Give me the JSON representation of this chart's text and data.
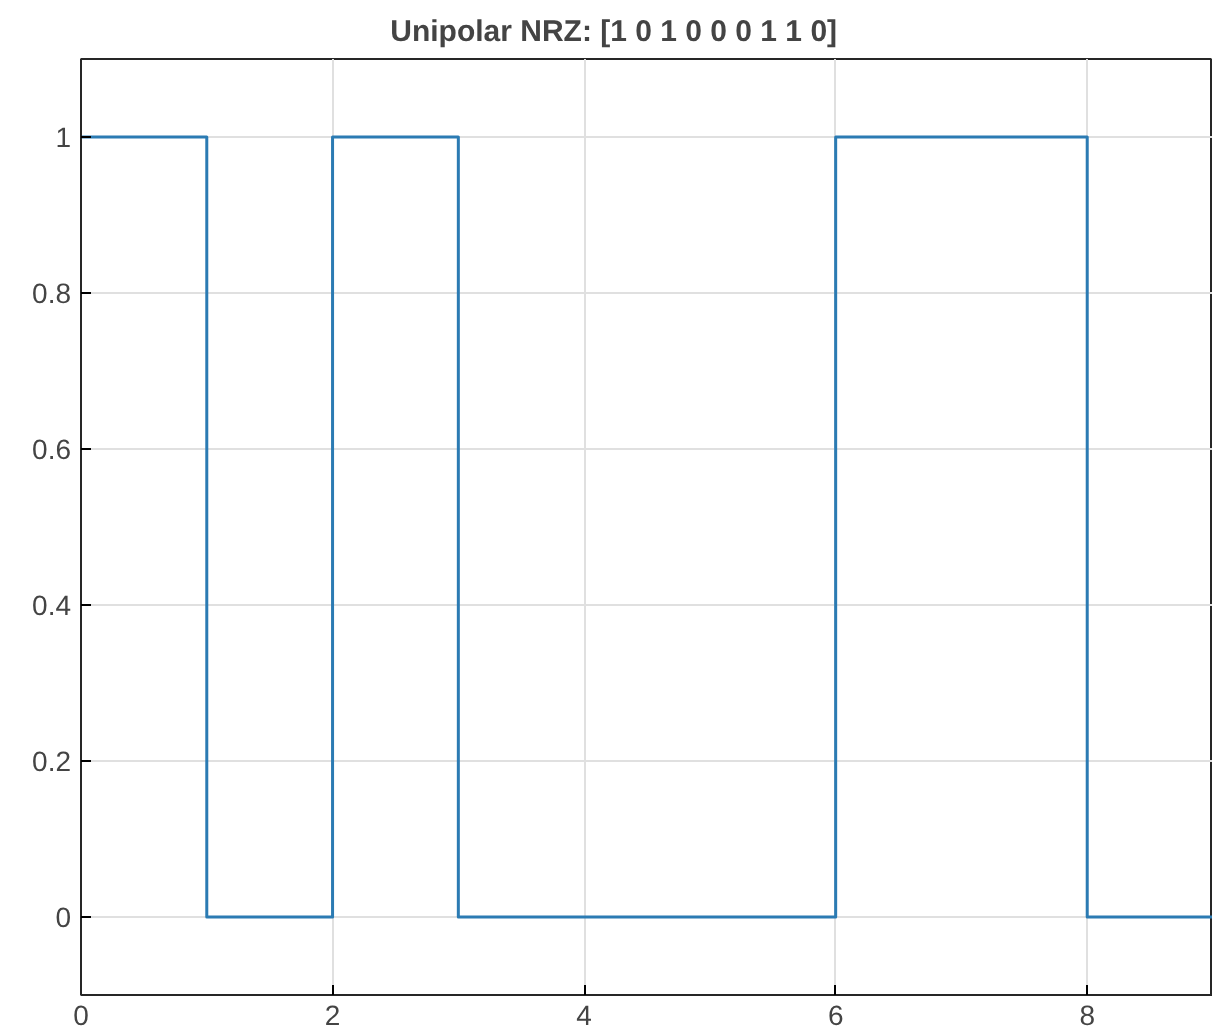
{
  "chart_data": {
    "type": "step",
    "title": "Unipolar NRZ: [1  0  1  0  0  0  1  1  0]",
    "x": [
      0,
      1,
      2,
      3,
      4,
      5,
      6,
      7,
      8,
      9
    ],
    "values": [
      1,
      0,
      1,
      0,
      0,
      0,
      1,
      1,
      0,
      0
    ],
    "color": "#2b7bb3",
    "xlim": [
      0,
      9
    ],
    "ylim": [
      -0.1,
      1.1
    ],
    "xticks": [
      0,
      2,
      4,
      6,
      8
    ],
    "yticks": [
      0,
      0.2,
      0.4,
      0.6,
      0.8,
      1
    ],
    "grid": true
  }
}
